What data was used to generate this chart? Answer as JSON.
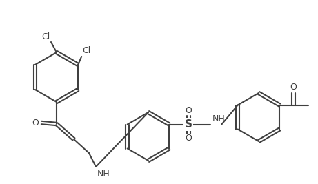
{
  "bg_color": "#ffffff",
  "line_color": "#404040",
  "text_color": "#404040",
  "figsize": [
    4.61,
    2.67
  ],
  "dpi": 100,
  "atoms": {
    "Cl1_label": "Cl",
    "Cl2_label": "Cl",
    "O1_label": "O",
    "NH1_label": "NH",
    "S_label": "S",
    "O2_label": "O",
    "O3_label": "O",
    "NH2_label": "NH",
    "O4_label": "O"
  }
}
